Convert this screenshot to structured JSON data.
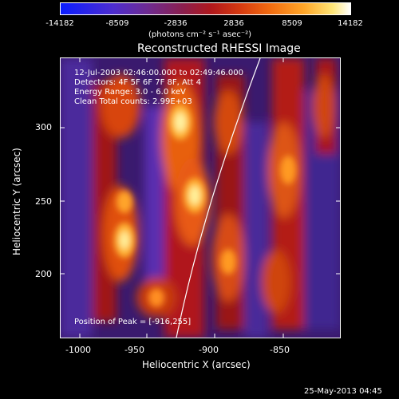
{
  "colorbar": {
    "ticks": [
      "-14182",
      "-8509",
      "-2836",
      "2836",
      "8509",
      "14182"
    ],
    "units": "(photons cm⁻² s⁻¹ asec⁻²)"
  },
  "image": {
    "title": "Reconstructed RHESSI Image",
    "info_lines": [
      "12-Jul-2003 02:46:00.000 to 02:49:46.000",
      "Detectors: 4F 5F 6F 7F 8F, Att 4",
      "Energy Range: 3.0 - 6.0 keV",
      "Clean    Total counts: 2.99E+03"
    ],
    "peak_label": "Position of Peak = [-916,255]",
    "x_axis": {
      "label": "Heliocentric X (arcsec)",
      "ticks": [
        "-1000",
        "-950",
        "-900",
        "-850"
      ]
    },
    "y_axis": {
      "label": "Heliocentric Y (arcsec)",
      "ticks": [
        "300",
        "250",
        "200"
      ]
    }
  },
  "footer": {
    "date": "25-May-2013 04:45"
  }
}
